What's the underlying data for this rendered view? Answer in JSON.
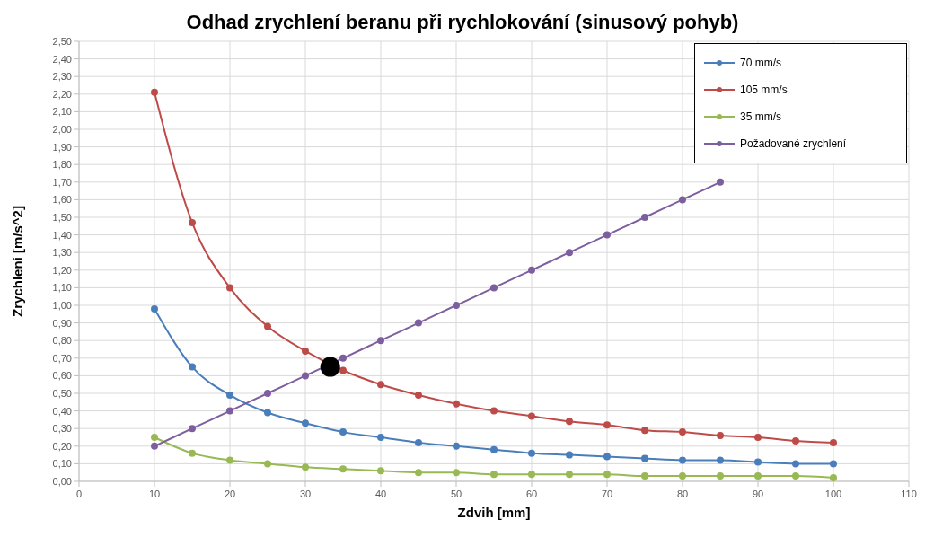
{
  "chart_data": {
    "type": "line",
    "title": "Odhad zrychlení beranu při rychlokování (sinusový pohyb)",
    "xlabel": "Zdvih [mm]",
    "ylabel": "Zrychlení [m/s^2]",
    "x": [
      10,
      15,
      20,
      25,
      30,
      35,
      40,
      45,
      50,
      55,
      60,
      65,
      70,
      75,
      80,
      85,
      90,
      95,
      100
    ],
    "series": [
      {
        "name": "70 mm/s",
        "color": "#4a7ebb",
        "values": [
          0.98,
          0.65,
          0.49,
          0.39,
          0.33,
          0.28,
          0.25,
          0.22,
          0.2,
          0.18,
          0.16,
          0.15,
          0.14,
          0.13,
          0.12,
          0.12,
          0.11,
          0.1,
          0.1
        ]
      },
      {
        "name": "105 mm/s",
        "color": "#be4b48",
        "values": [
          2.21,
          1.47,
          1.1,
          0.88,
          0.74,
          0.63,
          0.55,
          0.49,
          0.44,
          0.4,
          0.37,
          0.34,
          0.32,
          0.29,
          0.28,
          0.26,
          0.25,
          0.23,
          0.22
        ]
      },
      {
        "name": "35 mm/s",
        "color": "#98b954",
        "values": [
          0.25,
          0.16,
          0.12,
          0.1,
          0.08,
          0.07,
          0.06,
          0.05,
          0.05,
          0.04,
          0.04,
          0.04,
          0.04,
          0.03,
          0.03,
          0.03,
          0.03,
          0.03,
          0.02
        ]
      },
      {
        "name": "Požadované zrychlení",
        "color": "#7d5fa0",
        "values": [
          0.2,
          0.3,
          0.4,
          0.5,
          0.6,
          0.7,
          0.8,
          0.9,
          1.0,
          1.1,
          1.2,
          1.3,
          1.4,
          1.5,
          1.6,
          1.7,
          null,
          null,
          null
        ]
      },
      {
        "type": "scatter",
        "color": "#000000",
        "x": [
          33.3
        ],
        "values": [
          0.65
        ]
      }
    ],
    "xlim": [
      0,
      110
    ],
    "xticks": [
      0,
      10,
      20,
      30,
      40,
      50,
      60,
      70,
      80,
      90,
      100,
      110
    ],
    "ylim": [
      0,
      2.5
    ],
    "yticks": [
      {
        "value": 0,
        "label": "0,00"
      },
      {
        "value": 0.1,
        "label": "0,10"
      },
      {
        "value": 0.2,
        "label": "0,20"
      },
      {
        "value": 0.3,
        "label": "0,30"
      },
      {
        "value": 0.4,
        "label": "0,40"
      },
      {
        "value": 0.5,
        "label": "0,50"
      },
      {
        "value": 0.6,
        "label": "0,60"
      },
      {
        "value": 0.7,
        "label": "0,70"
      },
      {
        "value": 0.8,
        "label": "0,80"
      },
      {
        "value": 0.9,
        "label": "0,90"
      },
      {
        "value": 1,
        "label": "1,00"
      },
      {
        "value": 1.1,
        "label": "1,10"
      },
      {
        "value": 1.2,
        "label": "1,20"
      },
      {
        "value": 1.3,
        "label": "1,30"
      },
      {
        "value": 1.4,
        "label": "1,40"
      },
      {
        "value": 1.5,
        "label": "1,50"
      },
      {
        "value": 1.6,
        "label": "1,60"
      },
      {
        "value": 1.7,
        "label": "1,70"
      },
      {
        "value": 1.8,
        "label": "1,80"
      },
      {
        "value": 1.9,
        "label": "1,90"
      },
      {
        "value": 2,
        "label": "2,00"
      },
      {
        "value": 2.1,
        "label": "2,10"
      },
      {
        "value": 2.2,
        "label": "2,20"
      },
      {
        "value": 2.3,
        "label": "2,30"
      },
      {
        "value": 2.4,
        "label": "2,40"
      },
      {
        "value": 2.5,
        "label": "2,50"
      }
    ],
    "grid": true,
    "legend": "top right",
    "marker": "circle",
    "line_style": "solid"
  }
}
